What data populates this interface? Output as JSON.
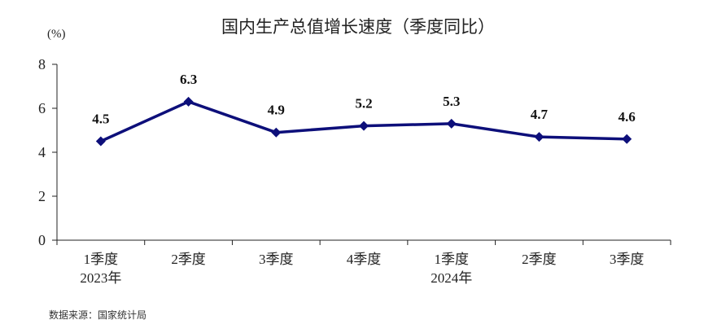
{
  "chart_data": {
    "type": "line",
    "title": "国内生产总值增长速度（季度同比）",
    "unit_label": "(%)",
    "ylim": [
      0,
      8
    ],
    "yticks": [
      0,
      2,
      4,
      6,
      8
    ],
    "categories": [
      "1季度",
      "2季度",
      "3季度",
      "4季度",
      "1季度",
      "2季度",
      "3季度"
    ],
    "year_labels": [
      {
        "label": "2023年",
        "index": 0
      },
      {
        "label": "2024年",
        "index": 4
      }
    ],
    "series": [
      {
        "values": [
          4.5,
          6.3,
          4.9,
          5.2,
          5.3,
          4.7,
          4.6
        ]
      }
    ],
    "data_labels": [
      "4.5",
      "6.3",
      "4.9",
      "5.2",
      "5.3",
      "4.7",
      "4.6"
    ],
    "line_color": "#0d0f7a",
    "grid": false,
    "source": "数据来源：国家统计局"
  }
}
